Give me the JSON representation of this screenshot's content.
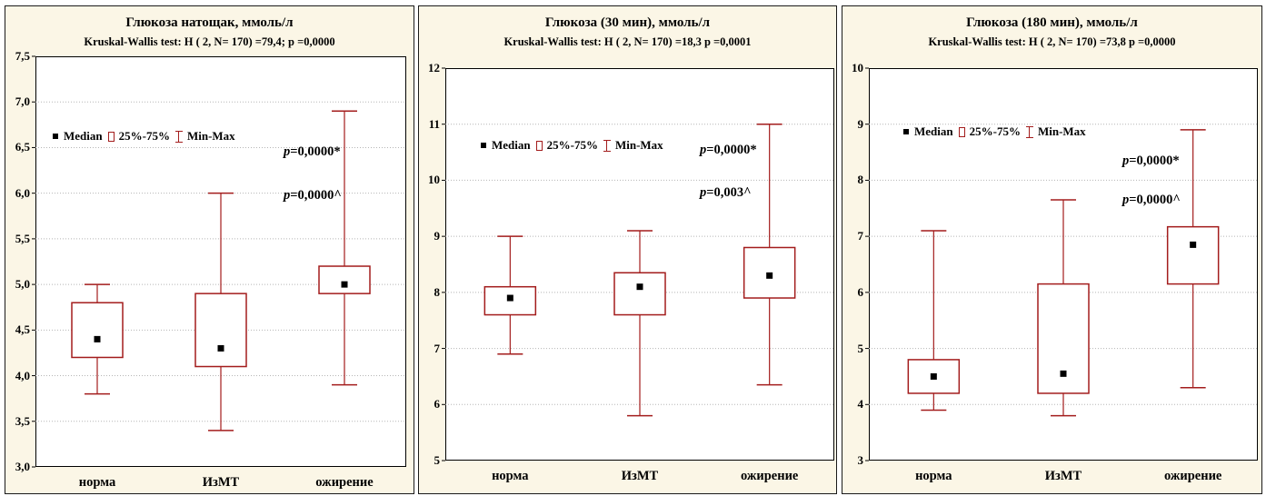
{
  "chart_data": [
    {
      "type": "box",
      "title": "Глюкоза натощак, ммоль/л",
      "subtitle": "Kruskal-Wallis test: H ( 2, N= 170) =79,4; p =0,0000",
      "categories": [
        "норма",
        "ИзМТ",
        "ожирение"
      ],
      "ylim": [
        3.0,
        7.5
      ],
      "yticks": [
        "3,0",
        "3,5",
        "4,0",
        "4,5",
        "5,0",
        "5,5",
        "6,0",
        "6,5",
        "7,0",
        "7,5"
      ],
      "ytick_values": [
        3.0,
        3.5,
        4.0,
        4.5,
        5.0,
        5.5,
        6.0,
        6.5,
        7.0,
        7.5
      ],
      "grid": true,
      "legend": {
        "median": "Median",
        "box": "25%-75%",
        "whisker": "Min-Max",
        "placement": "top-left"
      },
      "series": [
        {
          "category": "норма",
          "min": 3.8,
          "q1": 4.2,
          "median": 4.4,
          "q3": 4.8,
          "max": 5.0
        },
        {
          "category": "ИзМТ",
          "min": 3.4,
          "q1": 4.1,
          "median": 4.3,
          "q3": 4.9,
          "max": 6.0
        },
        {
          "category": "ожирение",
          "min": 3.9,
          "q1": 4.9,
          "median": 5.0,
          "q3": 5.2,
          "max": 6.9
        }
      ],
      "annotations": [
        {
          "p": "p",
          "rest": "=0,0000*"
        },
        {
          "p": "p",
          "rest": "=0,0000^"
        }
      ]
    },
    {
      "type": "box",
      "title": "Глюкоза (30 мин), ммоль/л",
      "subtitle": "Kruskal-Wallis test: H ( 2, N= 170) =18,3 p =0,0001",
      "categories": [
        "норма",
        "ИзМТ",
        "ожирение"
      ],
      "ylim": [
        5,
        12
      ],
      "yticks": [
        "5",
        "6",
        "7",
        "8",
        "9",
        "10",
        "11",
        "12"
      ],
      "ytick_values": [
        5,
        6,
        7,
        8,
        9,
        10,
        11,
        12
      ],
      "grid": true,
      "legend": {
        "median": "Median",
        "box": "25%-75%",
        "whisker": "Min-Max",
        "placement": "top-left"
      },
      "series": [
        {
          "category": "норма",
          "min": 6.9,
          "q1": 7.6,
          "median": 7.9,
          "q3": 8.1,
          "max": 9.0
        },
        {
          "category": "ИзМТ",
          "min": 5.8,
          "q1": 7.6,
          "median": 8.1,
          "q3": 8.35,
          "max": 9.1
        },
        {
          "category": "ожирение",
          "min": 6.35,
          "q1": 7.9,
          "median": 8.3,
          "q3": 8.8,
          "max": 11.0
        }
      ],
      "annotations": [
        {
          "p": "p",
          "rest": "=0,0000*"
        },
        {
          "p": "p",
          "rest": "=0,003^"
        }
      ]
    },
    {
      "type": "box",
      "title": "Глюкоза (180 мин), ммоль/л",
      "subtitle": "Kruskal-Wallis test: H ( 2, N= 170) =73,8 p =0,0000",
      "categories": [
        "норма",
        "ИзМТ",
        "ожирение"
      ],
      "ylim": [
        3,
        10
      ],
      "yticks": [
        "3",
        "4",
        "5",
        "6",
        "7",
        "8",
        "9",
        "10"
      ],
      "ytick_values": [
        3,
        4,
        5,
        6,
        7,
        8,
        9,
        10
      ],
      "grid": true,
      "legend": {
        "median": "Median",
        "box": "25%-75%",
        "whisker": "Min-Max",
        "placement": "top-left"
      },
      "series": [
        {
          "category": "норма",
          "min": 3.9,
          "q1": 4.2,
          "median": 4.5,
          "q3": 4.8,
          "max": 7.1
        },
        {
          "category": "ИзМТ",
          "min": 3.8,
          "q1": 4.2,
          "median": 4.55,
          "q3": 6.15,
          "max": 7.65
        },
        {
          "category": "ожирение",
          "min": 4.3,
          "q1": 6.15,
          "median": 6.85,
          "q3": 7.17,
          "max": 8.9
        }
      ],
      "annotations": [
        {
          "p": "p",
          "rest": "=0,0000*"
        },
        {
          "p": "p",
          "rest": "=0,0000^"
        }
      ]
    }
  ],
  "colors": {
    "box": "#a31c1c",
    "median": "#000000",
    "panel_bg": "#fbf6e6",
    "grid": "#b5b5b5"
  }
}
